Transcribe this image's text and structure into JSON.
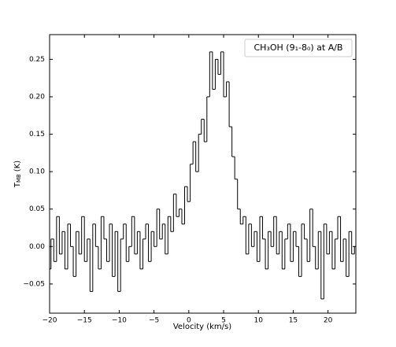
{
  "chart_data": {
    "type": "step",
    "legend_text": "CH₃OH (9₁-8₀) at A/B",
    "x_label": "Velocity (km/s)",
    "y_label": {
      "main": "T",
      "sub": "MB",
      "unit": "(K)"
    },
    "color": "#000000",
    "xlim": [
      -20,
      24
    ],
    "ylim": [
      -0.089,
      0.283
    ],
    "xticks": [
      {
        "value": -20,
        "label": "−20"
      },
      {
        "value": -15,
        "label": "−15"
      },
      {
        "value": -10,
        "label": "−10"
      },
      {
        "value": -5,
        "label": "−5"
      },
      0,
      5,
      10,
      15,
      20
    ],
    "yticks": [
      {
        "value": -0.05,
        "label": "−0.05"
      },
      {
        "value": 0,
        "label": "0.00"
      },
      {
        "value": 0.05,
        "label": "0.05"
      },
      {
        "value": 0.1,
        "label": "0.10"
      },
      {
        "value": 0.15,
        "label": "0.15"
      },
      {
        "value": 0.2,
        "label": "0.20"
      },
      {
        "value": 0.25,
        "label": "0.25"
      }
    ],
    "x": [
      -20,
      -19.6,
      -19.2,
      -18.8,
      -18.4,
      -18,
      -17.6,
      -17.2,
      -16.8,
      -16.4,
      -16,
      -15.6,
      -15.2,
      -14.8,
      -14.4,
      -14,
      -13.6,
      -13.2,
      -12.8,
      -12.4,
      -12,
      -11.6,
      -11.2,
      -10.8,
      -10.4,
      -10,
      -9.6,
      -9.2,
      -8.8,
      -8.4,
      -8,
      -7.6,
      -7.2,
      -6.8,
      -6.4,
      -6,
      -5.6,
      -5.2,
      -4.8,
      -4.4,
      -4,
      -3.6,
      -3.2,
      -2.8,
      -2.4,
      -2,
      -1.6,
      -1.2,
      -0.8,
      -0.4,
      0,
      0.4,
      0.8,
      1.2,
      1.6,
      2,
      2.4,
      2.8,
      3.2,
      3.6,
      4,
      4.4,
      4.8,
      5.2,
      5.6,
      6,
      6.4,
      6.8,
      7.2,
      7.6,
      8,
      8.4,
      8.8,
      9.2,
      9.6,
      10,
      10.4,
      10.8,
      11.2,
      11.6,
      12,
      12.4,
      12.8,
      13.2,
      13.6,
      14,
      14.4,
      14.8,
      15.2,
      15.6,
      16,
      16.4,
      16.8,
      17.2,
      17.6,
      18,
      18.4,
      18.8,
      19.2,
      19.6,
      20,
      20.4,
      20.8,
      21.2,
      21.6,
      22,
      22.4,
      22.8,
      23.2,
      23.6,
      24
    ],
    "values": [
      -0.03,
      0.01,
      -0.02,
      0.04,
      -0.01,
      0.02,
      -0.03,
      0.03,
      0,
      -0.04,
      0.02,
      -0.01,
      0.04,
      -0.02,
      0.01,
      -0.06,
      0.03,
      0,
      -0.03,
      0.04,
      0.01,
      -0.02,
      0.03,
      -0.04,
      0.02,
      -0.06,
      0.01,
      0.03,
      -0.02,
      0,
      0.04,
      -0.01,
      0.02,
      -0.03,
      0.01,
      0.03,
      -0.02,
      0.02,
      0,
      0.05,
      0.01,
      0.03,
      -0.01,
      0.04,
      0.02,
      0.07,
      0.04,
      0.05,
      0.03,
      0.08,
      0.06,
      0.11,
      0.14,
      0.1,
      0.15,
      0.17,
      0.14,
      0.2,
      0.26,
      0.21,
      0.25,
      0.23,
      0.26,
      0.2,
      0.22,
      0.16,
      0.12,
      0.09,
      0.05,
      0.03,
      0.04,
      -0.01,
      0.03,
      0,
      0.02,
      -0.02,
      0.04,
      0.01,
      -0.03,
      0.02,
      0,
      0.04,
      -0.01,
      0.02,
      -0.03,
      0.01,
      0.03,
      -0.02,
      0.02,
      0,
      -0.04,
      0.03,
      0.01,
      -0.02,
      0.05,
      0,
      -0.03,
      0.02,
      -0.07,
      0.03,
      -0.01,
      0.02,
      -0.03,
      0.01,
      0.04,
      -0.02,
      0.01,
      -0.04,
      0.02,
      -0.01,
      0
    ]
  }
}
